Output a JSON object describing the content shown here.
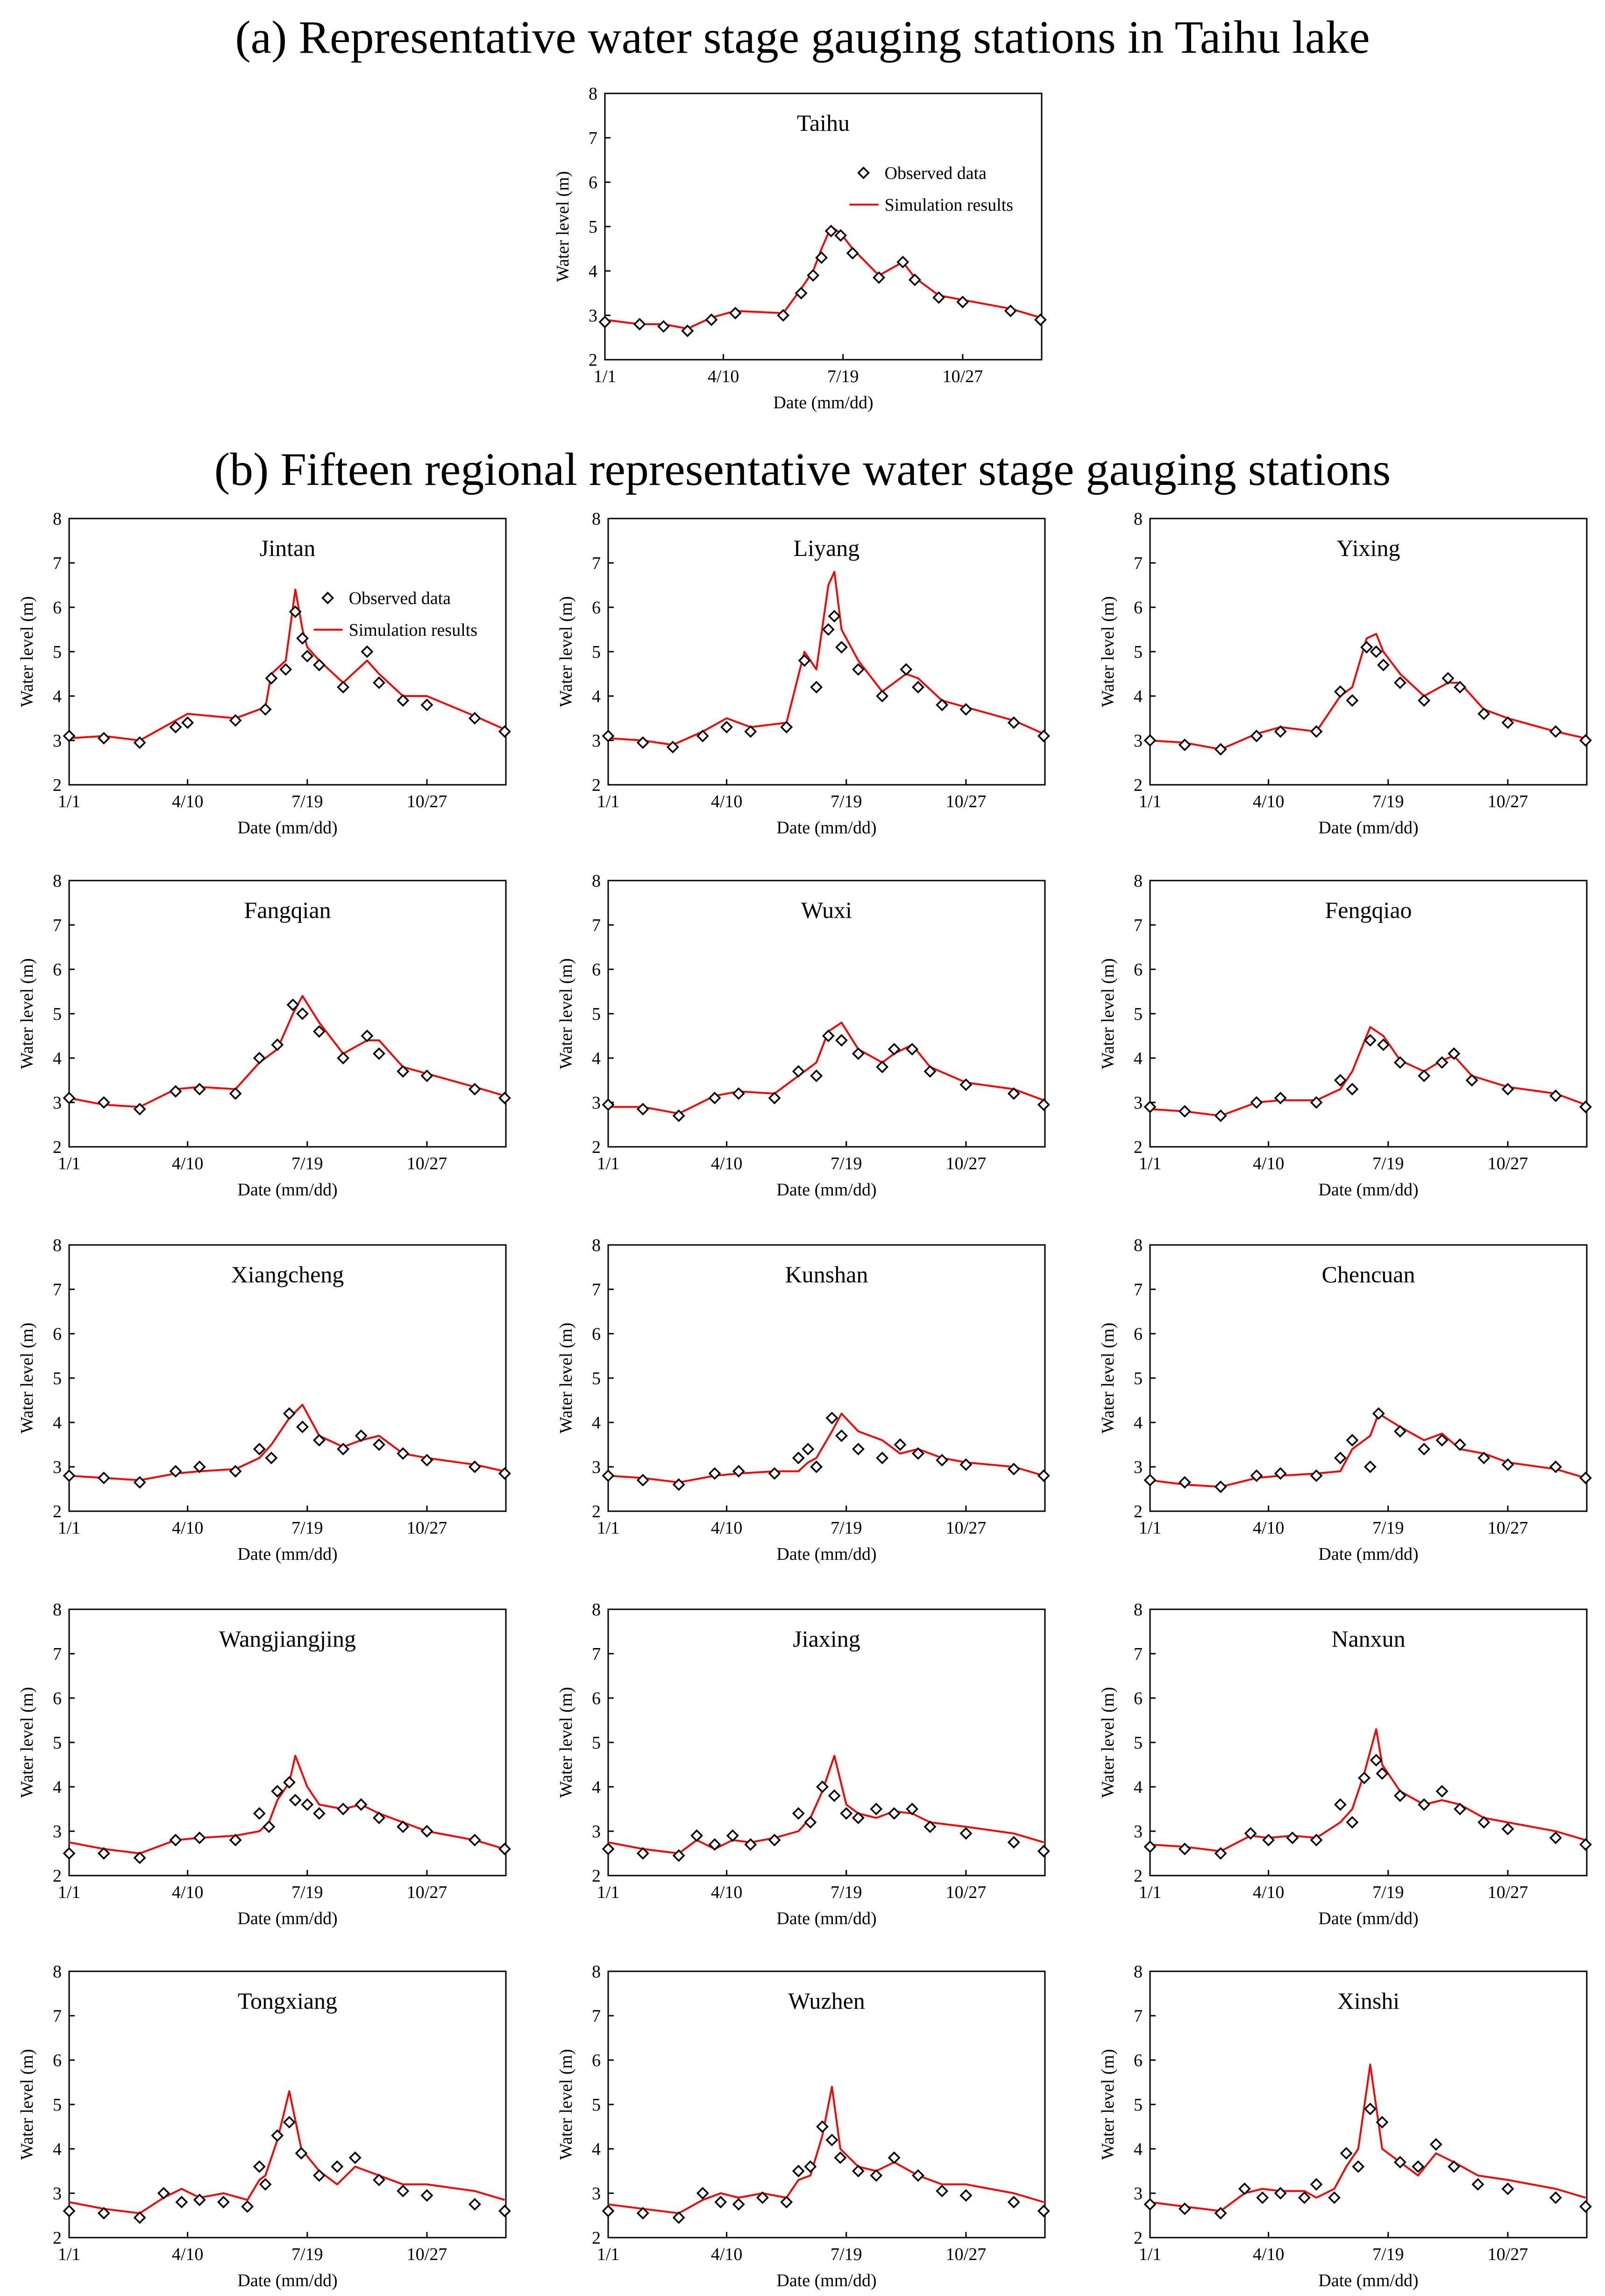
{
  "titles": {
    "a": "(a) Representative water stage gauging stations in Taihu lake",
    "b": "(b) Fifteen regional representative water stage gauging stations"
  },
  "axes": {
    "xlabel": "Date (mm/dd)",
    "ylabel": "Water level (m)",
    "xticks": [
      "1/1",
      "4/10",
      "7/19",
      "10/27"
    ],
    "xtick_days": [
      1,
      100,
      200,
      300
    ],
    "yticks": [
      2,
      3,
      4,
      5,
      6,
      7,
      8
    ],
    "xlim": [
      1,
      366
    ],
    "ylim": [
      2,
      8
    ]
  },
  "legend": {
    "observed": "Observed data",
    "simulated": "Simulation results"
  },
  "colors": {
    "simulated": "#ff0000",
    "observed": "#000000",
    "frame": "#000000"
  },
  "chart_data": [
    {
      "type": "line",
      "station": "Taihu",
      "legend": true,
      "x": [
        1,
        30,
        50,
        70,
        90,
        110,
        150,
        165,
        175,
        182,
        190,
        198,
        208,
        230,
        250,
        260,
        280,
        300,
        340,
        365
      ],
      "observed": [
        2.85,
        2.8,
        2.75,
        2.65,
        2.9,
        3.05,
        3.0,
        3.5,
        3.9,
        4.3,
        4.9,
        4.8,
        4.4,
        3.85,
        4.2,
        3.8,
        3.4,
        3.3,
        3.1,
        2.9
      ],
      "simulated": [
        2.9,
        2.8,
        2.8,
        2.7,
        2.95,
        3.1,
        3.05,
        3.6,
        4.0,
        4.5,
        5.0,
        4.85,
        4.5,
        3.9,
        4.2,
        3.85,
        3.45,
        3.35,
        3.15,
        2.95
      ]
    },
    {
      "type": "line",
      "station": "Jintan",
      "legend": true,
      "x": [
        1,
        30,
        60,
        90,
        100,
        140,
        165,
        170,
        182,
        190,
        196,
        200,
        210,
        230,
        250,
        260,
        280,
        300,
        340,
        365
      ],
      "observed": [
        3.1,
        3.05,
        2.95,
        3.3,
        3.4,
        3.45,
        3.7,
        4.4,
        4.6,
        5.9,
        5.3,
        4.9,
        4.7,
        4.2,
        5.0,
        4.3,
        3.9,
        3.8,
        3.5,
        3.2
      ],
      "simulated": [
        3.05,
        3.1,
        3.0,
        3.45,
        3.6,
        3.5,
        3.75,
        4.5,
        4.8,
        6.4,
        5.5,
        5.1,
        4.8,
        4.3,
        4.8,
        4.5,
        4.0,
        4.0,
        3.55,
        3.25
      ]
    },
    {
      "type": "line",
      "station": "Liyang",
      "legend": false,
      "x": [
        1,
        30,
        55,
        80,
        100,
        120,
        150,
        165,
        175,
        185,
        190,
        196,
        210,
        230,
        250,
        260,
        280,
        300,
        340,
        365
      ],
      "observed": [
        3.1,
        2.95,
        2.85,
        3.1,
        3.3,
        3.2,
        3.3,
        4.8,
        4.2,
        5.5,
        5.8,
        5.1,
        4.6,
        4.0,
        4.6,
        4.2,
        3.8,
        3.7,
        3.4,
        3.1
      ],
      "simulated": [
        3.05,
        3.0,
        2.9,
        3.2,
        3.5,
        3.3,
        3.4,
        5.0,
        4.6,
        6.5,
        6.8,
        5.5,
        4.8,
        4.1,
        4.5,
        4.4,
        3.9,
        3.75,
        3.45,
        3.15
      ]
    },
    {
      "type": "line",
      "station": "Yixing",
      "legend": false,
      "x": [
        1,
        30,
        60,
        90,
        110,
        140,
        160,
        170,
        182,
        190,
        196,
        210,
        230,
        250,
        260,
        280,
        300,
        340,
        365
      ],
      "observed": [
        3.0,
        2.9,
        2.8,
        3.1,
        3.2,
        3.2,
        4.1,
        3.9,
        5.1,
        5.0,
        4.7,
        4.3,
        3.9,
        4.4,
        4.2,
        3.6,
        3.4,
        3.2,
        3.0
      ],
      "simulated": [
        3.0,
        2.95,
        2.8,
        3.15,
        3.3,
        3.2,
        4.0,
        4.2,
        5.3,
        5.4,
        5.0,
        4.5,
        4.0,
        4.3,
        4.3,
        3.7,
        3.5,
        3.2,
        3.05
      ]
    },
    {
      "type": "line",
      "station": "Fangqian",
      "legend": false,
      "x": [
        1,
        30,
        60,
        90,
        110,
        140,
        160,
        175,
        188,
        196,
        210,
        230,
        250,
        260,
        280,
        300,
        340,
        365
      ],
      "observed": [
        3.1,
        3.0,
        2.85,
        3.25,
        3.3,
        3.2,
        4.0,
        4.3,
        5.2,
        5.0,
        4.6,
        4.0,
        4.5,
        4.1,
        3.7,
        3.6,
        3.3,
        3.1
      ],
      "simulated": [
        3.1,
        2.95,
        2.9,
        3.3,
        3.35,
        3.3,
        3.9,
        4.2,
        5.0,
        5.4,
        4.8,
        4.1,
        4.4,
        4.4,
        3.8,
        3.65,
        3.35,
        3.15
      ]
    },
    {
      "type": "line",
      "station": "Wuxi",
      "legend": false,
      "x": [
        1,
        30,
        60,
        90,
        110,
        140,
        160,
        175,
        185,
        196,
        210,
        230,
        240,
        255,
        270,
        300,
        340,
        365
      ],
      "observed": [
        2.95,
        2.85,
        2.7,
        3.1,
        3.2,
        3.1,
        3.7,
        3.6,
        4.5,
        4.4,
        4.1,
        3.8,
        4.2,
        4.2,
        3.7,
        3.4,
        3.2,
        2.95
      ],
      "simulated": [
        2.9,
        2.9,
        2.75,
        3.15,
        3.25,
        3.2,
        3.6,
        3.9,
        4.6,
        4.8,
        4.2,
        3.9,
        4.1,
        4.3,
        3.8,
        3.45,
        3.3,
        3.05
      ]
    },
    {
      "type": "line",
      "station": "Fengqiao",
      "legend": false,
      "x": [
        1,
        30,
        60,
        90,
        110,
        140,
        160,
        170,
        185,
        196,
        210,
        230,
        245,
        255,
        270,
        300,
        340,
        365
      ],
      "observed": [
        2.9,
        2.8,
        2.7,
        3.0,
        3.1,
        3.0,
        3.5,
        3.3,
        4.4,
        4.3,
        3.9,
        3.6,
        3.9,
        4.1,
        3.5,
        3.3,
        3.15,
        2.9
      ],
      "simulated": [
        2.85,
        2.8,
        2.7,
        3.0,
        3.05,
        3.05,
        3.3,
        3.7,
        4.7,
        4.5,
        3.95,
        3.7,
        3.95,
        4.05,
        3.6,
        3.35,
        3.2,
        2.95
      ]
    },
    {
      "type": "line",
      "station": "Xiangcheng",
      "legend": false,
      "x": [
        1,
        30,
        60,
        90,
        110,
        140,
        160,
        170,
        185,
        196,
        210,
        230,
        245,
        260,
        280,
        300,
        340,
        365
      ],
      "observed": [
        2.8,
        2.75,
        2.65,
        2.9,
        3.0,
        2.9,
        3.4,
        3.2,
        4.2,
        3.9,
        3.6,
        3.4,
        3.7,
        3.5,
        3.3,
        3.15,
        3.0,
        2.85
      ],
      "simulated": [
        2.8,
        2.75,
        2.7,
        2.85,
        2.9,
        2.95,
        3.2,
        3.5,
        4.1,
        4.4,
        3.7,
        3.45,
        3.6,
        3.7,
        3.3,
        3.2,
        3.05,
        2.9
      ]
    },
    {
      "type": "line",
      "station": "Kunshan",
      "legend": false,
      "x": [
        1,
        30,
        60,
        90,
        110,
        140,
        160,
        168,
        175,
        188,
        196,
        210,
        230,
        245,
        260,
        280,
        300,
        340,
        365
      ],
      "observed": [
        2.8,
        2.7,
        2.6,
        2.85,
        2.9,
        2.85,
        3.2,
        3.4,
        3.0,
        4.1,
        3.7,
        3.4,
        3.2,
        3.5,
        3.3,
        3.15,
        3.05,
        2.95,
        2.8
      ],
      "simulated": [
        2.8,
        2.75,
        2.65,
        2.8,
        2.85,
        2.9,
        2.9,
        3.1,
        3.2,
        3.8,
        4.2,
        3.8,
        3.6,
        3.3,
        3.4,
        3.2,
        3.1,
        3.0,
        2.8
      ]
    },
    {
      "type": "line",
      "station": "Chencuan",
      "legend": false,
      "x": [
        1,
        30,
        60,
        90,
        110,
        140,
        160,
        170,
        185,
        192,
        210,
        230,
        245,
        260,
        280,
        300,
        340,
        365
      ],
      "observed": [
        2.7,
        2.65,
        2.55,
        2.8,
        2.85,
        2.8,
        3.2,
        3.6,
        3.0,
        4.2,
        3.8,
        3.4,
        3.6,
        3.5,
        3.2,
        3.05,
        3.0,
        2.75
      ],
      "simulated": [
        2.7,
        2.6,
        2.55,
        2.75,
        2.8,
        2.85,
        2.9,
        3.4,
        3.7,
        4.2,
        3.9,
        3.6,
        3.75,
        3.4,
        3.3,
        3.1,
        2.95,
        2.75
      ]
    },
    {
      "type": "line",
      "station": "Wangjiangjing",
      "legend": false,
      "x": [
        1,
        30,
        60,
        90,
        110,
        140,
        160,
        168,
        175,
        185,
        190,
        200,
        210,
        230,
        245,
        260,
        280,
        300,
        340,
        365
      ],
      "observed": [
        2.5,
        2.5,
        2.4,
        2.8,
        2.85,
        2.8,
        3.4,
        3.1,
        3.9,
        4.1,
        3.7,
        3.6,
        3.4,
        3.5,
        3.6,
        3.3,
        3.1,
        3.0,
        2.8,
        2.6
      ],
      "simulated": [
        2.75,
        2.6,
        2.5,
        2.8,
        2.85,
        2.9,
        3.0,
        3.2,
        3.7,
        4.1,
        4.7,
        4.0,
        3.6,
        3.5,
        3.6,
        3.4,
        3.2,
        3.0,
        2.8,
        2.6
      ]
    },
    {
      "type": "line",
      "station": "Jiaxing",
      "legend": false,
      "x": [
        1,
        30,
        60,
        75,
        90,
        105,
        120,
        140,
        160,
        170,
        180,
        190,
        200,
        210,
        225,
        240,
        255,
        270,
        300,
        340,
        365
      ],
      "observed": [
        2.6,
        2.5,
        2.45,
        2.9,
        2.7,
        2.9,
        2.7,
        2.8,
        3.4,
        3.2,
        4.0,
        3.8,
        3.4,
        3.3,
        3.5,
        3.4,
        3.5,
        3.1,
        2.95,
        2.75,
        2.55
      ],
      "simulated": [
        2.75,
        2.6,
        2.5,
        2.8,
        2.6,
        2.8,
        2.75,
        2.85,
        3.0,
        3.3,
        3.9,
        4.7,
        3.6,
        3.4,
        3.3,
        3.45,
        3.4,
        3.2,
        3.1,
        2.95,
        2.75
      ]
    },
    {
      "type": "line",
      "station": "Nanxun",
      "legend": false,
      "x": [
        1,
        30,
        60,
        85,
        100,
        120,
        140,
        160,
        170,
        180,
        190,
        195,
        210,
        230,
        245,
        260,
        280,
        300,
        340,
        365
      ],
      "observed": [
        2.65,
        2.6,
        2.5,
        2.95,
        2.8,
        2.85,
        2.8,
        3.6,
        3.2,
        4.2,
        4.6,
        4.3,
        3.8,
        3.6,
        3.9,
        3.5,
        3.2,
        3.05,
        2.85,
        2.7
      ],
      "simulated": [
        2.7,
        2.65,
        2.55,
        2.9,
        2.85,
        2.9,
        2.85,
        3.2,
        3.5,
        4.3,
        5.3,
        4.5,
        3.9,
        3.6,
        3.7,
        3.6,
        3.3,
        3.2,
        3.0,
        2.8
      ]
    },
    {
      "type": "line",
      "station": "Tongxiang",
      "legend": false,
      "x": [
        1,
        30,
        60,
        80,
        95,
        110,
        130,
        150,
        160,
        165,
        175,
        185,
        195,
        210,
        225,
        240,
        260,
        280,
        300,
        340,
        365
      ],
      "observed": [
        2.6,
        2.55,
        2.45,
        3.0,
        2.8,
        2.85,
        2.8,
        2.7,
        3.6,
        3.2,
        4.3,
        4.6,
        3.9,
        3.4,
        3.6,
        3.8,
        3.3,
        3.05,
        2.95,
        2.75,
        2.6
      ],
      "simulated": [
        2.8,
        2.65,
        2.55,
        2.9,
        3.1,
        2.9,
        3.0,
        2.85,
        3.3,
        3.4,
        4.2,
        5.3,
        4.0,
        3.5,
        3.2,
        3.6,
        3.4,
        3.2,
        3.2,
        3.05,
        2.85
      ]
    },
    {
      "type": "line",
      "station": "Wuzhen",
      "legend": false,
      "x": [
        1,
        30,
        60,
        80,
        95,
        110,
        130,
        150,
        160,
        170,
        180,
        188,
        195,
        210,
        225,
        240,
        260,
        280,
        300,
        340,
        365
      ],
      "observed": [
        2.6,
        2.55,
        2.45,
        3.0,
        2.8,
        2.75,
        2.9,
        2.8,
        3.5,
        3.6,
        4.5,
        4.2,
        3.8,
        3.5,
        3.4,
        3.8,
        3.4,
        3.05,
        2.95,
        2.8,
        2.6
      ],
      "simulated": [
        2.75,
        2.65,
        2.55,
        2.85,
        3.0,
        2.9,
        3.0,
        2.9,
        3.3,
        3.4,
        4.3,
        5.4,
        4.0,
        3.6,
        3.5,
        3.7,
        3.4,
        3.2,
        3.2,
        3.0,
        2.8
      ]
    },
    {
      "type": "line",
      "station": "Xinshi",
      "legend": false,
      "x": [
        1,
        30,
        60,
        80,
        95,
        110,
        130,
        140,
        155,
        165,
        175,
        185,
        195,
        210,
        225,
        240,
        255,
        275,
        300,
        340,
        365
      ],
      "observed": [
        2.75,
        2.65,
        2.55,
        3.1,
        2.9,
        3.0,
        2.9,
        3.2,
        2.9,
        3.9,
        3.6,
        4.9,
        4.6,
        3.7,
        3.6,
        4.1,
        3.6,
        3.2,
        3.1,
        2.9,
        2.7
      ],
      "simulated": [
        2.8,
        2.7,
        2.6,
        3.0,
        3.1,
        3.05,
        3.05,
        2.9,
        3.1,
        3.6,
        4.0,
        5.9,
        4.0,
        3.7,
        3.4,
        3.9,
        3.7,
        3.4,
        3.3,
        3.1,
        2.9
      ]
    }
  ]
}
